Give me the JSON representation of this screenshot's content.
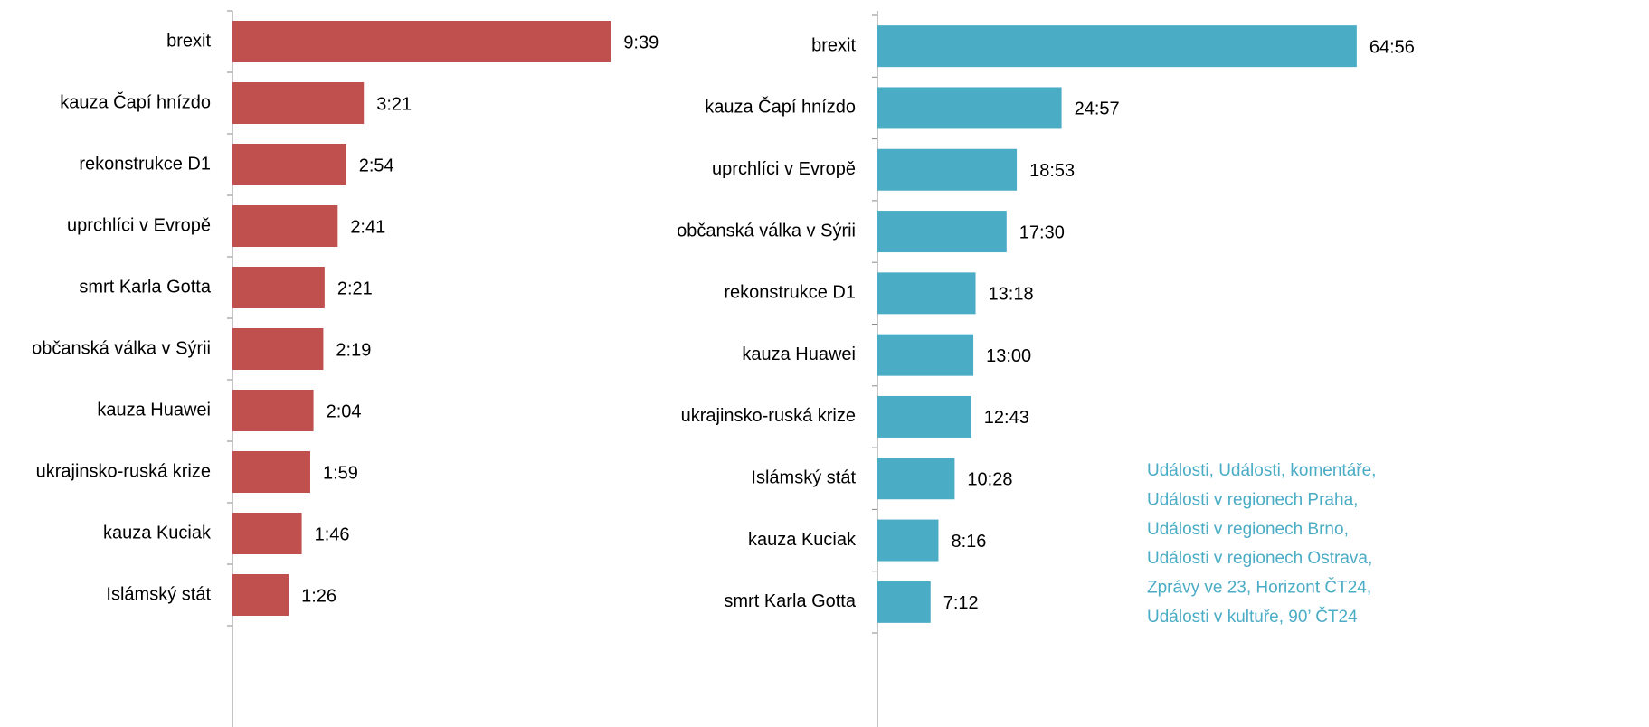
{
  "chart_data": [
    {
      "type": "bar",
      "orientation": "horizontal",
      "color": "#c0504d",
      "xlim": [
        0,
        800
      ],
      "categories": [
        "brexit",
        "kauza Čapí hnízdo",
        "rekonstrukce D1",
        "uprchlíci v Evropě",
        "smrt Karla Gotta",
        "občanská válka v Sýrii",
        "kauza Huawei",
        "ukrajinsko-ruská krize",
        "kauza Kuciak",
        "Islámský stát"
      ],
      "values": [
        579,
        201,
        174,
        161,
        141,
        139,
        124,
        119,
        106,
        86
      ],
      "value_labels": [
        "9:39",
        "3:21",
        "2:54",
        "2:41",
        "2:21",
        "2:19",
        "2:04",
        "1:59",
        "1:46",
        "1:26"
      ]
    },
    {
      "type": "bar",
      "orientation": "horizontal",
      "color": "#4bacc6",
      "xlim": [
        0,
        5000
      ],
      "categories": [
        "brexit",
        "kauza Čapí hnízdo",
        "uprchlíci v Evropě",
        "občanská válka v Sýrii",
        "rekonstrukce D1",
        "kauza Huawei",
        "ukrajinsko-ruská krize",
        "Islámský stát",
        "kauza Kuciak",
        "smrt Karla Gotta"
      ],
      "values": [
        3896,
        1497,
        1133,
        1050,
        798,
        780,
        763,
        628,
        496,
        432
      ],
      "value_labels": [
        "64:56",
        "24:57",
        "18:53",
        "17:30",
        "13:18",
        "13:00",
        "12:43",
        "10:28",
        "8:16",
        "7:12"
      ]
    }
  ],
  "note": [
    "Události, Události, komentáře,",
    "Události v regionech Praha,",
    "Události v regionech Brno,",
    "Události v regionech Ostrava,",
    "Zprávy ve 23, Horizont ČT24,",
    "Události v kultuře, 90’ ČT24"
  ]
}
